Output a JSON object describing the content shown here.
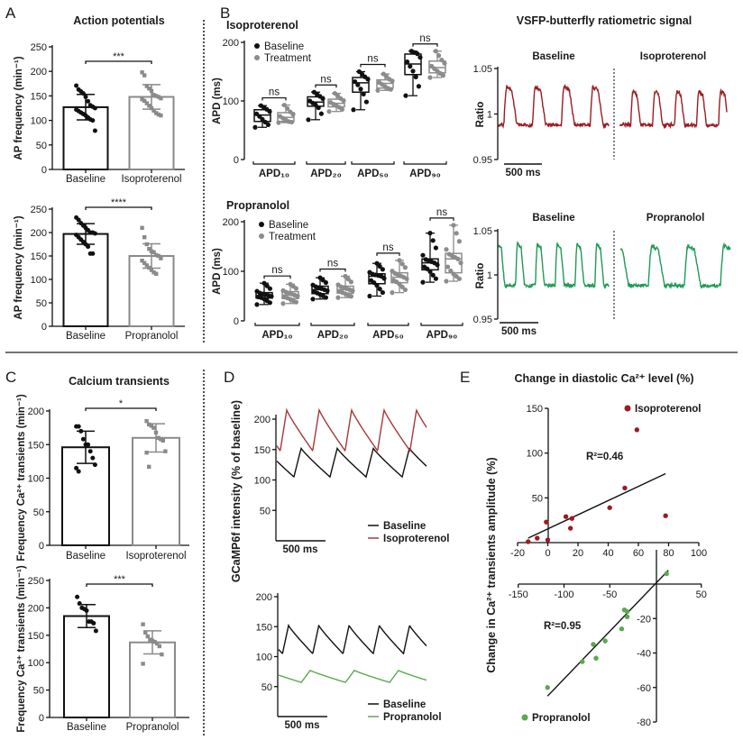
{
  "panel_letters": [
    "A",
    "B",
    "C",
    "D",
    "E"
  ],
  "chart_data": [
    {
      "id": "A1",
      "type": "bar",
      "title": "Action potentials",
      "ylabel": "AP frequency (min⁻¹)",
      "ylim": [
        0,
        250
      ],
      "yticks": [
        0,
        50,
        100,
        150,
        200,
        250
      ],
      "categories": [
        "Baseline",
        "Isoproterenol"
      ],
      "means": [
        127,
        148
      ],
      "sd": [
        26,
        25
      ],
      "significance": "***",
      "points": [
        [
          171,
          163,
          159,
          155,
          148,
          139,
          131,
          128,
          125,
          122,
          119,
          116,
          113,
          110,
          106,
          102,
          100,
          79
        ],
        [
          198,
          192,
          170,
          165,
          160,
          152,
          150,
          148,
          145,
          143,
          140,
          135,
          130,
          125,
          120,
          115,
          112,
          110
        ]
      ]
    },
    {
      "id": "A2",
      "type": "bar",
      "title": "",
      "ylabel": "AP frequency (min⁻¹)",
      "ylim": [
        0,
        250
      ],
      "yticks": [
        0,
        50,
        100,
        150,
        200,
        250
      ],
      "categories": [
        "Baseline",
        "Propranolol"
      ],
      "means": [
        197,
        150
      ],
      "sd": [
        22,
        26
      ],
      "significance": "****",
      "points": [
        [
          232,
          227,
          220,
          215,
          210,
          205,
          200,
          200,
          198,
          195,
          190,
          185,
          180,
          175,
          170,
          155,
          155
        ],
        [
          210,
          190,
          175,
          165,
          160,
          158,
          152,
          150,
          145,
          140,
          135,
          130,
          125,
          120,
          115,
          112
        ]
      ]
    },
    {
      "id": "B1",
      "type": "box",
      "title": "Isoproterenol",
      "ylabel": "APD (ms)",
      "ylim": [
        0,
        200
      ],
      "yticks": [
        0,
        100,
        200
      ],
      "legend": [
        "Baseline",
        "Treatment"
      ],
      "categories": [
        "APD₁₀",
        "APD₂₀",
        "APD₅₀",
        "APD₉₀"
      ],
      "significance": [
        "ns",
        "ns",
        "ns",
        "ns"
      ],
      "series": [
        {
          "name": "Baseline",
          "color": "#111111",
          "boxes": [
            {
              "min": 55,
              "q1": 65,
              "median": 76,
              "q3": 85,
              "max": 92,
              "n": 10
            },
            {
              "min": 68,
              "q1": 91,
              "median": 98,
              "q3": 107,
              "max": 115,
              "n": 10
            },
            {
              "min": 85,
              "q1": 115,
              "median": 131,
              "q3": 140,
              "max": 150,
              "n": 10
            },
            {
              "min": 109,
              "q1": 145,
              "median": 163,
              "q3": 180,
              "max": 185,
              "n": 10
            }
          ]
        },
        {
          "name": "Treatment",
          "color": "#8c8c8c",
          "boxes": [
            {
              "min": 63,
              "q1": 65,
              "median": 72,
              "q3": 80,
              "max": 93,
              "n": 10
            },
            {
              "min": 82,
              "q1": 90,
              "median": 96,
              "q3": 103,
              "max": 113,
              "n": 10
            },
            {
              "min": 118,
              "q1": 122,
              "median": 130,
              "q3": 136,
              "max": 146,
              "n": 10
            },
            {
              "min": 140,
              "q1": 148,
              "median": 157,
              "q3": 168,
              "max": 185,
              "n": 10
            }
          ]
        }
      ]
    },
    {
      "id": "B2",
      "type": "box",
      "title": "Propranolol",
      "ylabel": "APD (ms)",
      "ylim": [
        0,
        200
      ],
      "yticks": [
        0,
        100,
        200
      ],
      "legend": [
        "Baseline",
        "Treatment"
      ],
      "categories": [
        "APD₁₀",
        "APD₂₀",
        "APD₅₀",
        "APD₉₀"
      ],
      "significance": [
        "ns",
        "ns",
        "ns",
        "ns"
      ],
      "series": [
        {
          "name": "Baseline",
          "color": "#111111",
          "boxes": [
            {
              "min": 33,
              "q1": 46,
              "median": 51,
              "q3": 57,
              "max": 76,
              "n": 15
            },
            {
              "min": 44,
              "q1": 55,
              "median": 63,
              "q3": 70,
              "max": 87,
              "n": 15
            },
            {
              "min": 50,
              "q1": 75,
              "median": 90,
              "q3": 95,
              "max": 116,
              "n": 15
            },
            {
              "min": 78,
              "q1": 103,
              "median": 117,
              "q3": 125,
              "max": 177,
              "n": 15
            }
          ]
        },
        {
          "name": "Treatment",
          "color": "#8c8c8c",
          "boxes": [
            {
              "min": 35,
              "q1": 45,
              "median": 52,
              "q3": 59,
              "max": 74,
              "n": 15
            },
            {
              "min": 47,
              "q1": 56,
              "median": 63,
              "q3": 70,
              "max": 90,
              "n": 15
            },
            {
              "min": 57,
              "q1": 77,
              "median": 88,
              "q3": 97,
              "max": 122,
              "n": 15
            },
            {
              "min": 80,
              "q1": 97,
              "median": 125,
              "q3": 136,
              "max": 193,
              "n": 15
            }
          ]
        }
      ]
    },
    {
      "id": "B3",
      "type": "line",
      "title": "VSFP-butterfly ratiometric signal",
      "ylabel": "Ratio",
      "ylim": [
        0.95,
        1.05
      ],
      "yticks": [
        0.95,
        1,
        1.05
      ],
      "scalebar": "500 ms",
      "conditions": [
        {
          "name": "Baseline",
          "color": "#9b1c22",
          "period_ms": 380,
          "first_peak_ms": 107,
          "peak": 1.03,
          "trough": 0.988
        },
        {
          "name": "Isoproterenol",
          "color": "#9b1c22",
          "period_ms": 290,
          "first_peak_ms": 178,
          "peak": 1.025,
          "trough": 0.988
        }
      ]
    },
    {
      "id": "B4",
      "type": "line",
      "title": "",
      "ylabel": "Ratio",
      "ylim": [
        0.95,
        1.05
      ],
      "yticks": [
        0.95,
        1,
        1.05
      ],
      "scalebar": "500 ms",
      "conditions": [
        {
          "name": "Baseline",
          "color": "#1f9a55",
          "period_ms": 262,
          "first_peak_ms": 250,
          "peak": 1.035,
          "trough": 0.988
        },
        {
          "name": "Propranolol",
          "color": "#1f9a55",
          "period_ms": 476,
          "first_peak_ms": 417,
          "peak": 1.033,
          "trough": 0.988
        }
      ]
    },
    {
      "id": "C1",
      "type": "bar",
      "title": "Calcium transients",
      "ylabel": "Frequency Ca²⁺ transients (min⁻¹)",
      "ylim": [
        0,
        200
      ],
      "yticks": [
        0,
        50,
        100,
        150,
        200
      ],
      "categories": [
        "Baseline",
        "Isoproterenol"
      ],
      "means": [
        146,
        160
      ],
      "sd": [
        24,
        21
      ],
      "significance": "*",
      "points": [
        [
          177,
          177,
          170,
          158,
          150,
          150,
          140,
          130,
          120,
          115,
          110
        ],
        [
          185,
          180,
          178,
          175,
          168,
          160,
          158,
          156,
          140,
          138,
          117
        ]
      ]
    },
    {
      "id": "C2",
      "type": "bar",
      "title": "",
      "ylabel": "Frequency Ca²⁺ transients (min⁻¹)",
      "ylim": [
        0,
        250
      ],
      "yticks": [
        0,
        50,
        100,
        150,
        200,
        250
      ],
      "categories": [
        "Baseline",
        "Propranolol"
      ],
      "means": [
        185,
        137
      ],
      "sd": [
        21,
        21
      ],
      "significance": "***",
      "points": [
        [
          220,
          208,
          200,
          198,
          195,
          175,
          175,
          172,
          158
        ],
        [
          170,
          155,
          148,
          142,
          140,
          138,
          135,
          130,
          115,
          98
        ]
      ]
    },
    {
      "id": "D1",
      "type": "line",
      "ylabel": "GCaMP6f intensity (% of baseline)",
      "ylim": [
        0,
        200
      ],
      "yticks": [
        50,
        100,
        150,
        200
      ],
      "scalebar": "500 ms",
      "series": [
        {
          "name": "Baseline",
          "color": "#111111",
          "period_ms": 364,
          "first_peak_ms": 245,
          "peak": 152,
          "trough": 105
        },
        {
          "name": "Isoproterenol",
          "color": "#a5383d",
          "period_ms": 327,
          "first_peak_ms": 100,
          "peak": 215,
          "trough": 148
        }
      ]
    },
    {
      "id": "D2",
      "type": "line",
      "ylabel": "GCaMP6f intensity (% of baseline)",
      "ylim": [
        0,
        200
      ],
      "yticks": [
        50,
        100,
        150,
        200
      ],
      "scalebar": "500 ms",
      "series": [
        {
          "name": "Baseline",
          "color": "#111111",
          "period_ms": 305,
          "first_peak_ms": 100,
          "peak": 152,
          "trough": 105
        },
        {
          "name": "Propranolol",
          "color": "#5aa850",
          "period_ms": 445,
          "first_peak_ms": 318,
          "peak": 77,
          "trough": 57
        }
      ]
    },
    {
      "id": "E",
      "type": "scatter",
      "title": "Change in diastolic Ca²⁺ level (%)",
      "ylabel": "Change in Ca²⁺ transients amplitude (%)",
      "plots": [
        {
          "name": "Isoproterenol",
          "color": "#9b1c22",
          "xlim": [
            -20,
            100
          ],
          "ylim": [
            0,
            150
          ],
          "xticks": [
            -20,
            0,
            20,
            40,
            60,
            80,
            100
          ],
          "yticks": [
            50,
            100,
            150
          ],
          "r2": "R²=0.46",
          "points": [
            [
              -13,
              1
            ],
            [
              -7,
              5
            ],
            [
              -1,
              23
            ],
            [
              0,
              3
            ],
            [
              12,
              29
            ],
            [
              15,
              16
            ],
            [
              16,
              27
            ],
            [
              41,
              39
            ],
            [
              51,
              61
            ],
            [
              59,
              126
            ],
            [
              78,
              30
            ]
          ],
          "fit": [
            [
              -13,
              5
            ],
            [
              78,
              77
            ]
          ]
        },
        {
          "name": "Propranolol",
          "color": "#5aa850",
          "xlim": [
            -150,
            50
          ],
          "ylim": [
            -80,
            0
          ],
          "xticks": [
            -150,
            -100,
            -50,
            50
          ],
          "yticks": [
            -20,
            -40,
            -60,
            -80
          ],
          "r2": "R²=0.95",
          "points": [
            [
              12,
              6
            ],
            [
              -34,
              -15
            ],
            [
              -31,
              -16
            ],
            [
              -31,
              -19
            ],
            [
              -37,
              -26
            ],
            [
              -55,
              -33
            ],
            [
              -68,
              -35
            ],
            [
              -65,
              -43
            ],
            [
              -80,
              -45
            ],
            [
              -118,
              -60
            ]
          ],
          "fit": [
            [
              -118,
              -65
            ],
            [
              14,
              8
            ]
          ]
        }
      ]
    }
  ]
}
